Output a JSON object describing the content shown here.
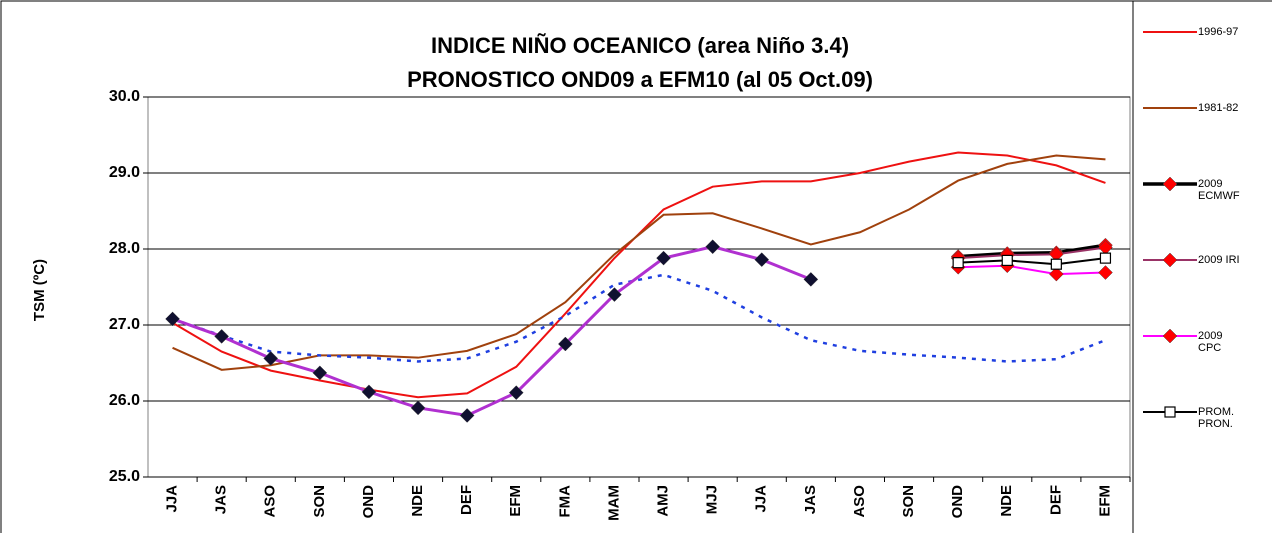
{
  "chart_data": {
    "type": "line",
    "title": "INDICE NIÑO OCEANICO (area Niño 3.4)",
    "subtitle": "PRONOSTICO OND09 a EFM10 (al 05 Oct.09)",
    "y_label": "TSM (ºC)",
    "categories": [
      "JJA",
      "JAS",
      "ASO",
      "SON",
      "OND",
      "NDE",
      "DEF",
      "EFM",
      "FMA",
      "MAM",
      "AMJ",
      "MJJ",
      "JJA",
      "JAS",
      "ASO",
      "SON",
      "OND",
      "NDE",
      "DEF",
      "EFM"
    ],
    "ylim": [
      25,
      30
    ],
    "yticks": [
      {
        "value": 25,
        "label": "25.0"
      },
      {
        "value": 26,
        "label": "26.0"
      },
      {
        "value": 27,
        "label": "27.0"
      },
      {
        "value": 28,
        "label": "28.0"
      },
      {
        "value": 29,
        "label": "29.0"
      },
      {
        "value": 30,
        "label": "30.0"
      }
    ],
    "grid": true,
    "legend": "right",
    "series": [
      {
        "name": "1996-97",
        "color": "#ee1111",
        "width": 2,
        "values": [
          27.03,
          26.65,
          26.4,
          26.27,
          26.15,
          26.05,
          26.1,
          26.45,
          27.15,
          27.88,
          28.52,
          28.82,
          28.89,
          28.89,
          29.0,
          29.15,
          29.27,
          29.23,
          29.1,
          28.87
        ]
      },
      {
        "name": "1981-82",
        "color": "#a0410d",
        "width": 2,
        "values": [
          26.7,
          26.41,
          26.47,
          26.6,
          26.6,
          26.57,
          26.66,
          26.88,
          27.3,
          27.93,
          28.45,
          28.47,
          28.27,
          28.06,
          28.22,
          28.52,
          28.9,
          29.12,
          29.23,
          29.18
        ]
      },
      {
        "color": "#1f3fe0",
        "width": 2.5,
        "dash": true,
        "values": [
          27.08,
          26.86,
          26.65,
          26.6,
          26.57,
          26.52,
          26.56,
          26.78,
          27.12,
          27.53,
          27.66,
          27.45,
          27.1,
          26.8,
          26.66,
          26.61,
          26.57,
          26.52,
          26.55,
          26.8
        ]
      },
      {
        "color": "#b030d0",
        "width": 3,
        "marker": "diamond",
        "marker_color": "#101030",
        "values": [
          27.08,
          26.85,
          26.56,
          26.37,
          26.12,
          25.91,
          25.81,
          26.11,
          26.75,
          27.4,
          27.88,
          28.03,
          27.86,
          27.6,
          null,
          null,
          null,
          null,
          null,
          null
        ]
      },
      {
        "name": "2009 ECMWF",
        "color": "#000000",
        "width": 3.5,
        "marker": "diamond",
        "marker_color": "#ff0000",
        "values": [
          null,
          null,
          null,
          null,
          null,
          null,
          null,
          null,
          null,
          null,
          null,
          null,
          null,
          null,
          null,
          null,
          27.9,
          27.94,
          27.95,
          28.05
        ]
      },
      {
        "name": "2009 IRI",
        "color": "#993366",
        "width": 2,
        "marker": "diamond",
        "marker_color": "#ff0000",
        "values": [
          null,
          null,
          null,
          null,
          null,
          null,
          null,
          null,
          null,
          null,
          null,
          null,
          null,
          null,
          null,
          null,
          27.88,
          27.92,
          27.93,
          28.02
        ]
      },
      {
        "name": "2009 CPC",
        "color": "#ff00ff",
        "width": 2,
        "marker": "diamond",
        "marker_color": "#ff0000",
        "values": [
          null,
          null,
          null,
          null,
          null,
          null,
          null,
          null,
          null,
          null,
          null,
          null,
          null,
          null,
          null,
          null,
          27.76,
          27.78,
          27.67,
          27.69
        ]
      },
      {
        "name": "PROM. PRON.",
        "color": "#000000",
        "width": 2,
        "marker": "square",
        "marker_color": "#ffffff",
        "values": [
          null,
          null,
          null,
          null,
          null,
          null,
          null,
          null,
          null,
          null,
          null,
          null,
          null,
          null,
          null,
          null,
          27.82,
          27.85,
          27.8,
          27.88
        ]
      }
    ]
  }
}
